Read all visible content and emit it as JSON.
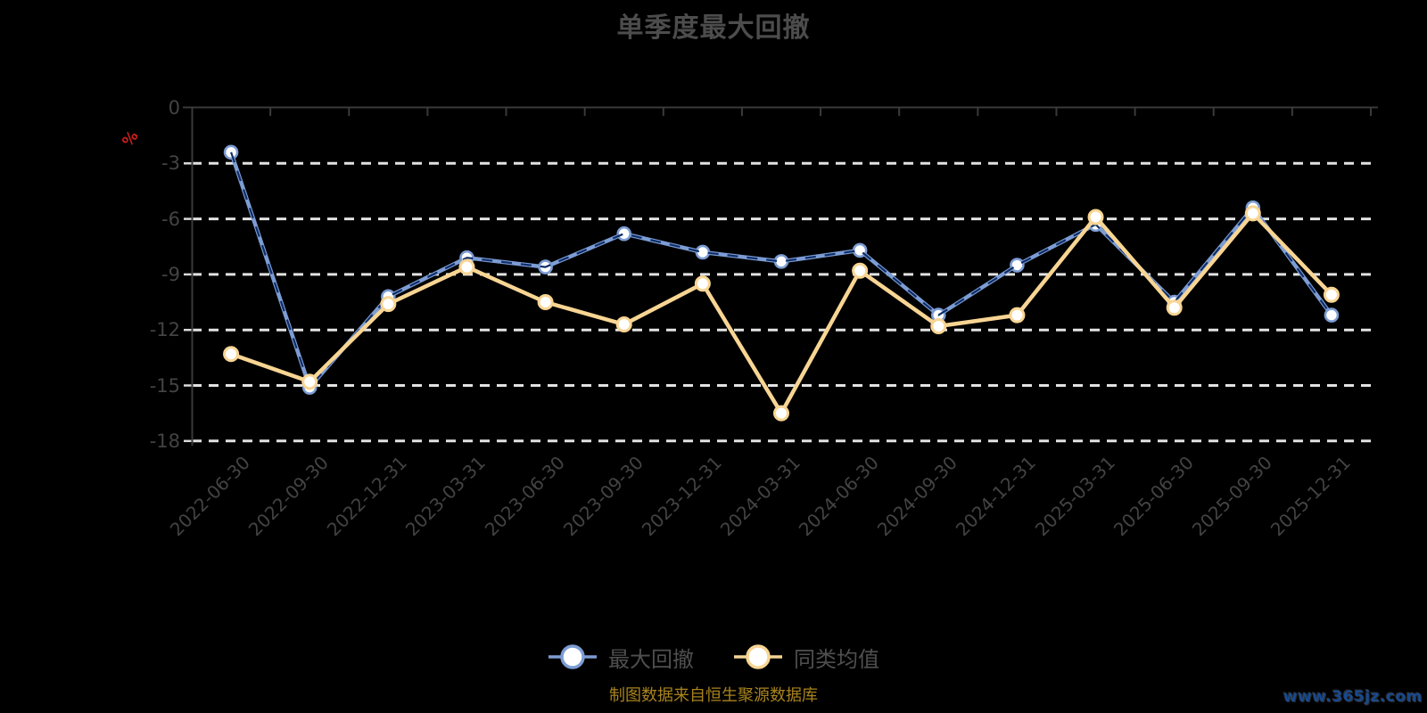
{
  "title": "单季度最大回撤",
  "y_axis": {
    "unit": "%",
    "tick_labels": [
      "0",
      "-3",
      "-6",
      "-9",
      "-12",
      "-15",
      "-18"
    ]
  },
  "legend": {
    "items": [
      "最大回撤",
      "同类均值"
    ]
  },
  "footer": {
    "source_note": "制图数据来自恒生聚源数据库",
    "watermark": "www.365jz.com"
  },
  "colors": {
    "background": "#000000",
    "title_text": "#4c4c4c",
    "axis_line": "#3a3a3a",
    "axis_tick_light": "#d9d9d9",
    "axis_label_text": "#434343",
    "grid_line": "#e2e2e2",
    "unit_text": "#c81e1e",
    "legend_text": "#4f4f4f",
    "source_note_text": "#a8831d",
    "watermark_text": "#17498f",
    "marker_fill": "#ffffff",
    "series": [
      "#7c9cd4",
      "#f8d593"
    ],
    "series_dash_overlay": "#0f2d66"
  },
  "chart_data": {
    "type": "line",
    "title": "单季度最大回撤",
    "ylabel": "%",
    "ylim": [
      -18,
      0
    ],
    "y_step": 3,
    "grid": "horizontal dashed",
    "legend_position": "bottom",
    "categories": [
      "2022-06-30",
      "2022-09-30",
      "2022-12-31",
      "2023-03-31",
      "2023-06-30",
      "2023-09-30",
      "2023-12-31",
      "2024-03-31",
      "2024-06-30",
      "2024-09-30",
      "2024-12-31",
      "2025-03-31",
      "2025-06-30",
      "2025-09-30",
      "2025-12-31"
    ],
    "series": [
      {
        "name": "最大回撤",
        "style": "solid with dark dashed overlay",
        "values": [
          -2.4,
          -15.1,
          -10.2,
          -8.1,
          -8.6,
          -6.8,
          -7.8,
          -8.3,
          -7.7,
          -11.2,
          -8.5,
          -6.3,
          -10.5,
          -5.4,
          -11.2
        ]
      },
      {
        "name": "同类均值",
        "style": "solid",
        "values": [
          -13.3,
          -14.8,
          -10.6,
          -8.6,
          -10.5,
          -11.7,
          -9.5,
          -16.5,
          -8.8,
          -11.8,
          -11.2,
          -5.9,
          -10.8,
          -5.7,
          -10.1
        ]
      }
    ]
  }
}
